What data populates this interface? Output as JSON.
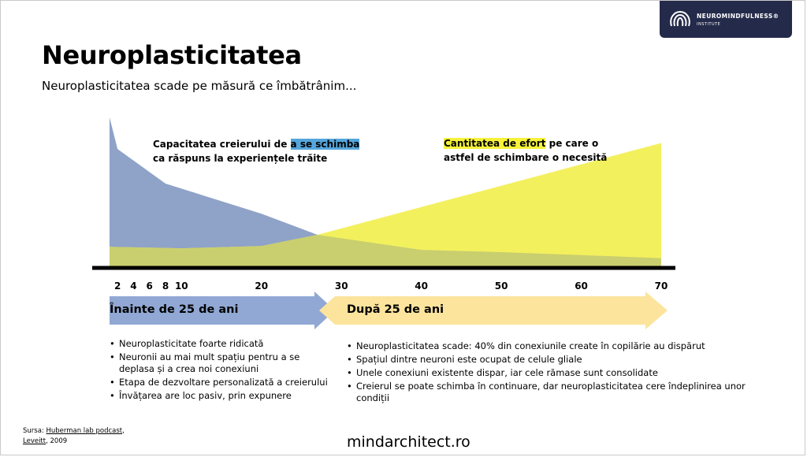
{
  "brand": {
    "name": "NEUROMINDFULNESS®",
    "sub": "INSTITUTE",
    "colors": {
      "bg": "#242a4a",
      "text": "#ffffff"
    }
  },
  "title": "Neuroplasticitatea",
  "subtitle": "Neuroplasticitatea scade pe măsură ce îmbătrânim...",
  "chart_data": {
    "type": "area",
    "x_ticks": [
      "2",
      "4",
      "6",
      "8",
      "10",
      "20",
      "30",
      "40",
      "50",
      "60",
      "70"
    ],
    "xlim": [
      1,
      70
    ],
    "ylim": [
      0,
      10
    ],
    "series": [
      {
        "name_parts": {
          "before": "Capacitatea creierului de ",
          "highlight": "a se schimba",
          "line2": "ca răspuns la experiențele trăite"
        },
        "color": "#8fa2c8",
        "highlight_color": "#56a6dc",
        "x": [
          1,
          2,
          8,
          20,
          27,
          40,
          50,
          60,
          70
        ],
        "y": [
          10,
          7.9,
          5.6,
          3.6,
          2.2,
          1.2,
          1.05,
          0.85,
          0.65
        ]
      },
      {
        "name_parts": {
          "highlight": "Cantitatea de efort",
          "after": " pe care o",
          "line2": "astfel de schimbare o necesită"
        },
        "color": "#f3f05e",
        "highlight_color": "#f6f23a",
        "x": [
          1,
          10,
          20,
          27,
          70
        ],
        "y": [
          1.4,
          1.3,
          1.45,
          2.2,
          8.3
        ]
      }
    ],
    "overlap_color": "#c9cf6e"
  },
  "arrows": {
    "before": {
      "label": "Înainte de 25 de ani",
      "color": "#91a8d4"
    },
    "after": {
      "label": "După 25 de ani",
      "color": "#fce49d"
    }
  },
  "bullets_before": [
    "Neuroplasticitate foarte ridicată",
    "Neuronii au mai mult spațiu pentru a se deplasa și a crea noi conexiuni",
    "Etapa de dezvoltare personalizată a creierului",
    "Învățarea are loc pasiv, prin expunere"
  ],
  "bullets_after": [
    "Neuroplasticitatea scade: 40% din conexiunile create în copilărie au dispărut",
    "Spațiul dintre neuroni este ocupat de celule gliale",
    "Unele conexiuni existente dispar, iar cele rămase sunt consolidate",
    "Creierul se poate schimba în continuare, dar neuroplasticitatea cere îndeplinirea unor condiții"
  ],
  "source": {
    "prefix": "Sursa: ",
    "link": "Huberman lab podcast",
    "author": "Leveitt",
    "rest": ", 2009"
  },
  "footer": "mindarchitect.ro"
}
